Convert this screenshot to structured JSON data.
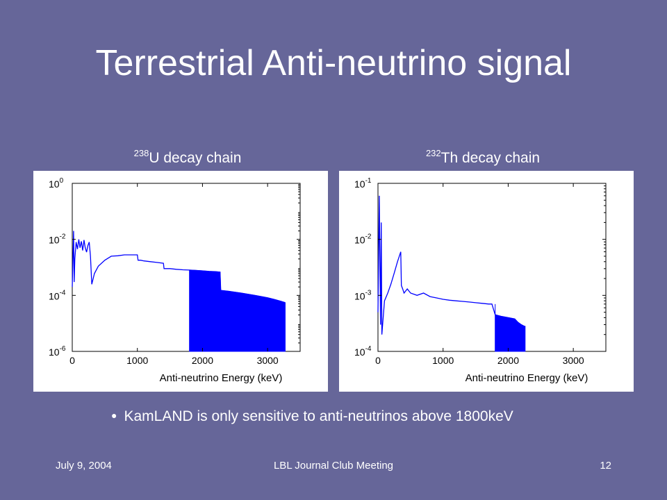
{
  "slide": {
    "title": "Terrestrial Anti-neutrino signal",
    "bullet": "KamLAND is only sensitive to anti-neutrinos above 1800keV",
    "footer": {
      "date": "July 9, 2004",
      "meeting": "LBL Journal Club Meeting",
      "page": "12"
    }
  },
  "colors": {
    "background": "#666699",
    "text": "#ffffff",
    "series": "#0000ff",
    "panel": "#ffffff"
  },
  "chart_data": [
    {
      "type": "line",
      "title_sup": "238",
      "title_rest": "U decay chain",
      "xlabel": "Anti-neutrino Energy (keV)",
      "ylabel": "",
      "xlim": [
        0,
        3500
      ],
      "yscale": "log",
      "ylim": [
        1e-06,
        1
      ],
      "xticks": [
        "0",
        "1000",
        "2000",
        "3000"
      ],
      "ytick_base": "10",
      "yticks_exp": [
        "0",
        "-2",
        "-4",
        "-6"
      ],
      "fill_from_x": 1800,
      "series": [
        {
          "x": [
            0,
            20,
            30,
            40,
            60,
            80,
            100,
            120,
            140,
            160,
            180,
            200,
            220,
            240,
            260,
            280,
            300,
            340,
            400,
            500,
            600,
            700,
            800,
            900,
            1000,
            1010,
            1050,
            1100,
            1200,
            1300,
            1400,
            1410,
            1500,
            1600,
            1700,
            1800,
            1900,
            2000,
            2100,
            2200,
            2270,
            2280,
            2400,
            2600,
            2800,
            3000,
            3100,
            3200,
            3270
          ],
          "y": [
            0.0002,
            0.02,
            0.0003,
            0.002,
            0.008,
            0.0045,
            0.01,
            0.005,
            0.0085,
            0.004,
            0.0095,
            0.005,
            0.0035,
            0.006,
            0.008,
            0.0025,
            0.00025,
            0.0006,
            0.0011,
            0.0018,
            0.0025,
            0.0026,
            0.0028,
            0.0028,
            0.0028,
            0.0018,
            0.0018,
            0.0017,
            0.0016,
            0.0015,
            0.0014,
            0.0009,
            0.0009,
            0.00085,
            0.00082,
            0.0008,
            0.00078,
            0.00075,
            0.00072,
            0.0007,
            0.00068,
            0.00015,
            0.00014,
            0.00012,
            0.0001,
            8.2e-05,
            7.2e-05,
            6.2e-05,
            5.5e-05
          ]
        }
      ]
    },
    {
      "type": "line",
      "title_sup": "232",
      "title_rest": "Th decay chain",
      "xlabel": "Anti-neutrino Energy (keV)",
      "ylabel": "",
      "xlim": [
        0,
        3500
      ],
      "yscale": "log",
      "ylim": [
        0.0001,
        0.1
      ],
      "xticks": [
        "0",
        "1000",
        "2000",
        "3000"
      ],
      "ytick_base": "10",
      "yticks_exp": [
        "-1",
        "-2",
        "-3",
        "-4"
      ],
      "fill_from_x": 1800,
      "series": [
        {
          "x": [
            0,
            20,
            40,
            50,
            60,
            100,
            150,
            200,
            250,
            300,
            350,
            360,
            380,
            400,
            450,
            500,
            600,
            700,
            800,
            900,
            1000,
            1100,
            1200,
            1300,
            1400,
            1500,
            1600,
            1700,
            1750,
            1800,
            1900,
            2000,
            2100,
            2150,
            2200,
            2250,
            2260
          ],
          "y": [
            0.0005,
            0.06,
            0.0003,
            0.02,
            0.0002,
            0.0008,
            0.0011,
            0.0016,
            0.0025,
            0.004,
            0.006,
            0.0015,
            0.0013,
            0.0011,
            0.0013,
            0.0011,
            0.001,
            0.0011,
            0.00095,
            0.0009,
            0.00085,
            0.00082,
            0.0008,
            0.00078,
            0.00076,
            0.00074,
            0.00072,
            0.0007,
            0.0007,
            0.00045,
            0.00042,
            0.0004,
            0.00038,
            0.00033,
            0.0003,
            0.00028,
            0.00028
          ]
        }
      ]
    }
  ]
}
